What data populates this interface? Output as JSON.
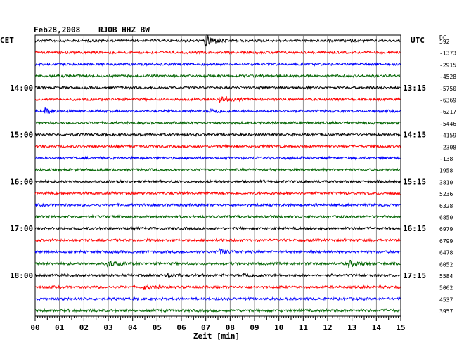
{
  "chart_data": {
    "type": "line",
    "title": "Feb28,2008  RJOB HHZ BW",
    "date": "Feb28,2008",
    "station": "RJOB HHZ BW",
    "left_timezone": "CET",
    "right_timezone": "UTC",
    "dc_header": "DC",
    "xlabel": "Zeit [min]",
    "xlim": [
      0,
      15
    ],
    "x_ticks": [
      "00",
      "01",
      "02",
      "03",
      "04",
      "05",
      "06",
      "07",
      "08",
      "09",
      "10",
      "11",
      "12",
      "13",
      "14",
      "15"
    ],
    "grid": true,
    "trace_colors": [
      "#000000",
      "#ff0000",
      "#0000ff",
      "#006400"
    ],
    "left_hour_labels": [
      {
        "row": 4,
        "label": "14:00"
      },
      {
        "row": 8,
        "label": "15:00"
      },
      {
        "row": 12,
        "label": "16:00"
      },
      {
        "row": 16,
        "label": "17:00"
      },
      {
        "row": 20,
        "label": "18:00"
      }
    ],
    "right_hour_labels": [
      {
        "row": 4,
        "label": "13:15"
      },
      {
        "row": 8,
        "label": "14:15"
      },
      {
        "row": 12,
        "label": "15:15"
      },
      {
        "row": 16,
        "label": "16:15"
      },
      {
        "row": 20,
        "label": "17:15"
      }
    ],
    "dc_offsets": [
      "592",
      "-1373",
      "-2915",
      "-4528",
      "-5750",
      "-6369",
      "-6217",
      "-5446",
      "-4159",
      "-2308",
      "-138",
      "1958",
      "3810",
      "5236",
      "6328",
      "6850",
      "6979",
      "6799",
      "6478",
      "6052",
      "5584",
      "5062",
      "4537",
      "3957"
    ],
    "events": [
      {
        "row": 0,
        "minute": 7.0,
        "amplitude": 9
      },
      {
        "row": 5,
        "minute": 7.6,
        "amplitude": 4
      },
      {
        "row": 6,
        "minute": 0.4,
        "amplitude": 3
      },
      {
        "row": 6,
        "minute": 7.2,
        "amplitude": 3
      },
      {
        "row": 18,
        "minute": 7.6,
        "amplitude": 3
      },
      {
        "row": 19,
        "minute": 3.0,
        "amplitude": 4
      },
      {
        "row": 19,
        "minute": 12.9,
        "amplitude": 4
      },
      {
        "row": 20,
        "minute": 5.5,
        "amplitude": 3
      },
      {
        "row": 20,
        "minute": 8.6,
        "amplitude": 3
      },
      {
        "row": 21,
        "minute": 4.5,
        "amplitude": 3
      }
    ]
  }
}
